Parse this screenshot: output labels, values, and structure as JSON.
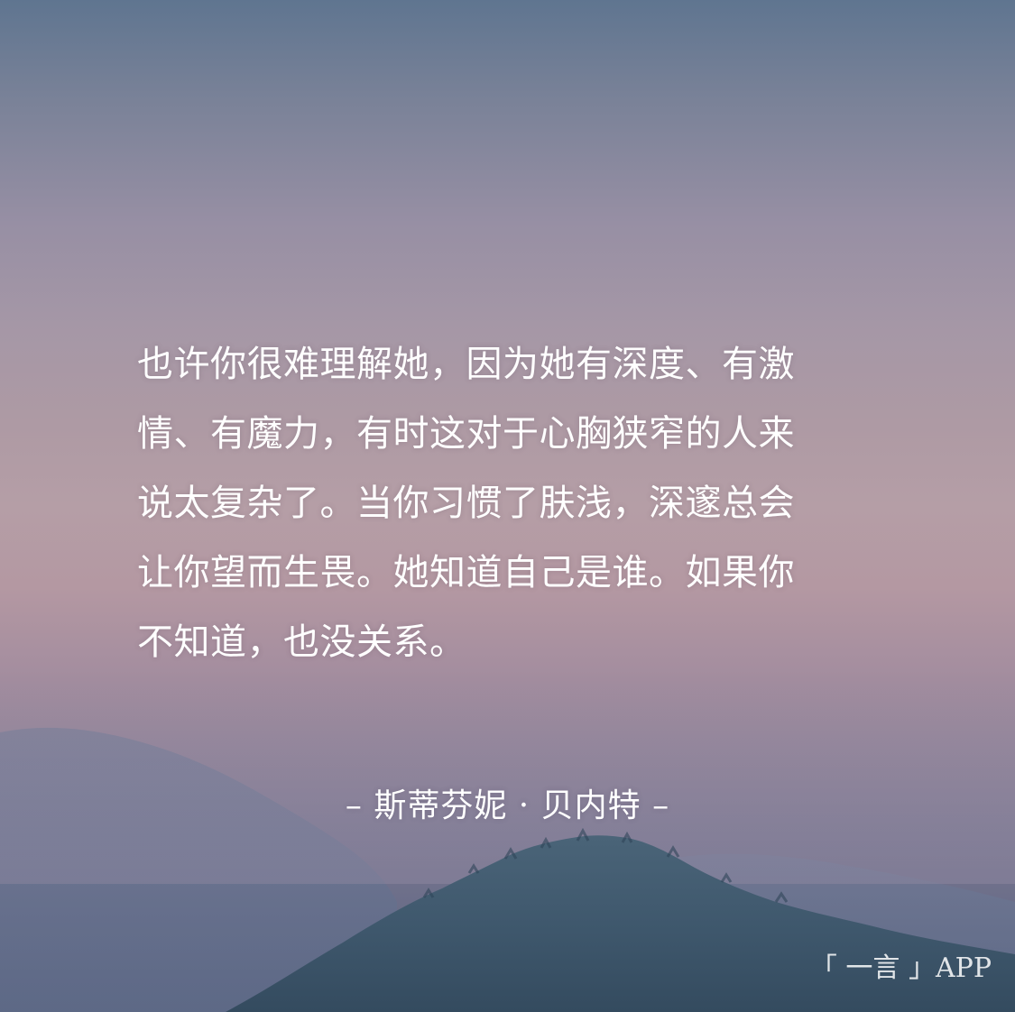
{
  "quote": {
    "lines": [
      "也许你很难理解她，因为她有深度、有激",
      "情、有魔力，有时这对于心胸狭窄的人来",
      "说太复杂了。当你习惯了肤浅，深邃总会",
      "让你望而生畏。她知道自己是谁。如果你",
      "不知道，也没关系。"
    ]
  },
  "author": "– 斯蒂芬妮 · 贝内特 –",
  "brand": "「 一言 」APP"
}
